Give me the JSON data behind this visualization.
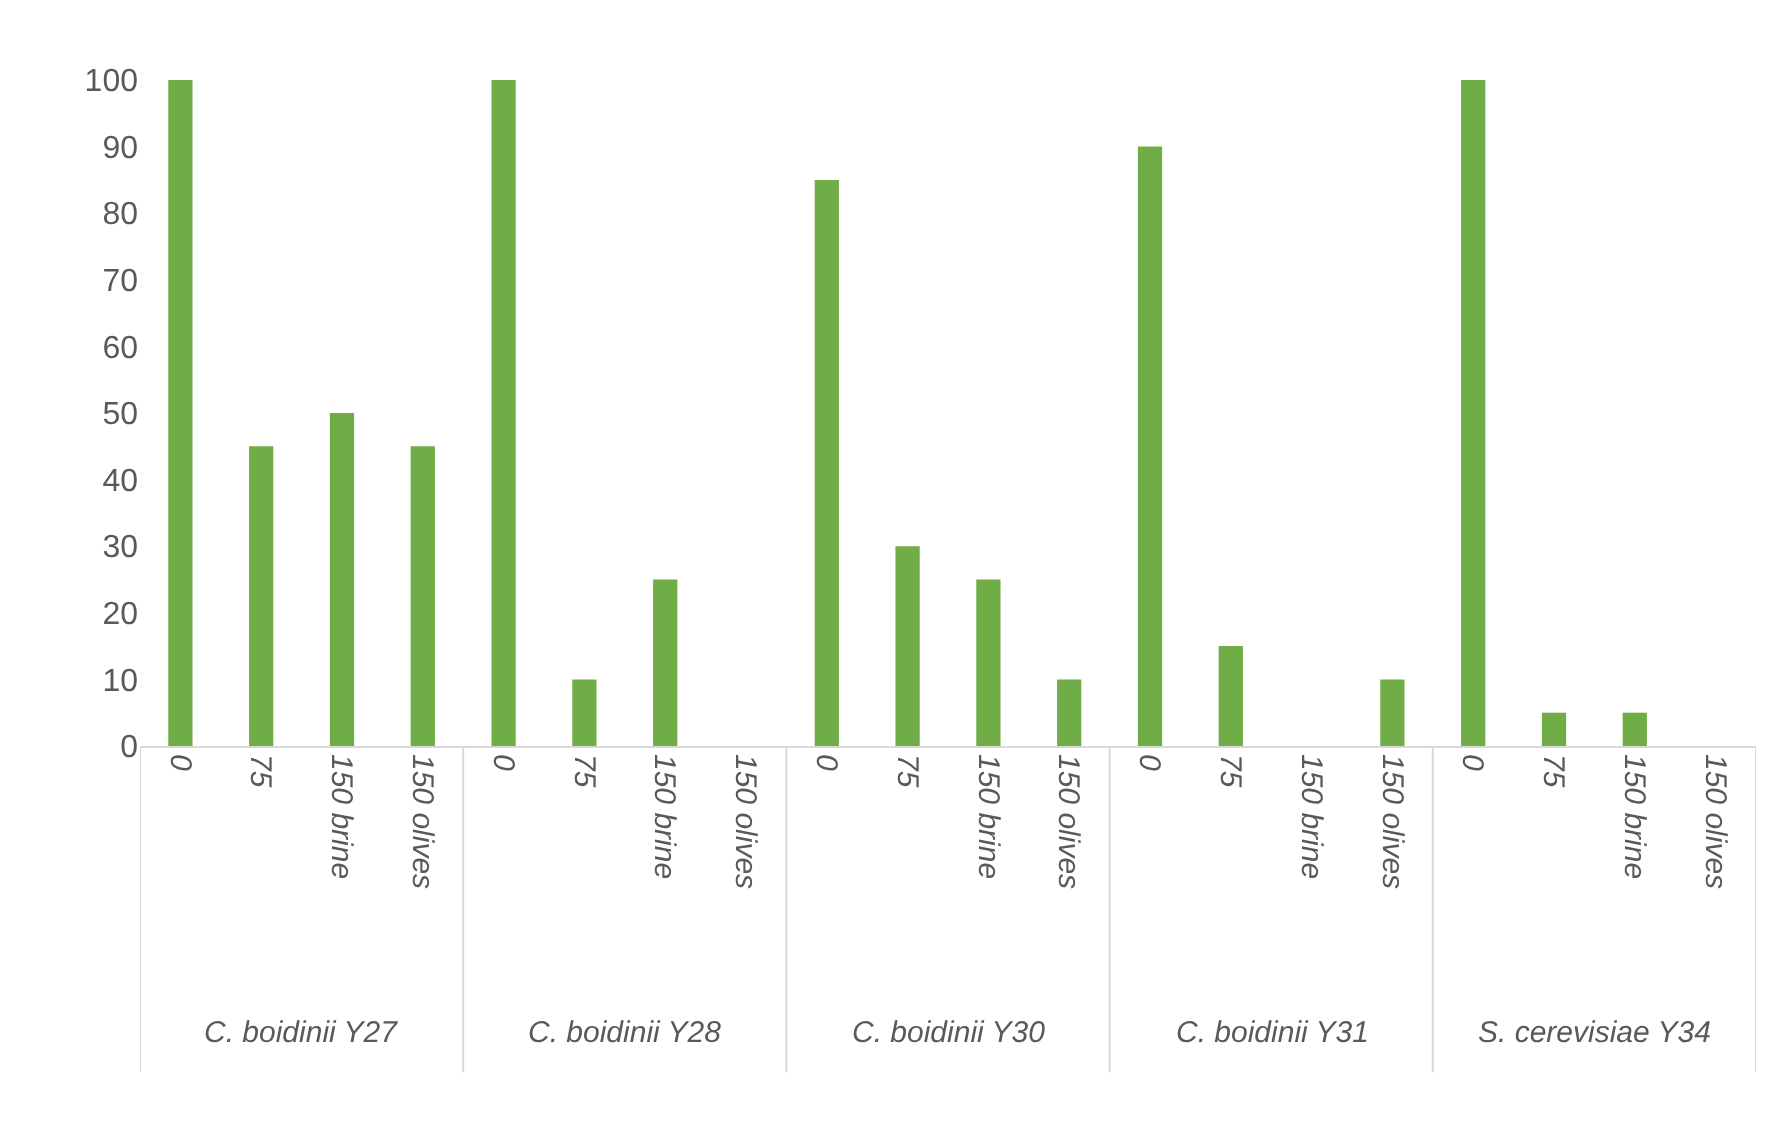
{
  "chart_data": {
    "type": "bar",
    "categories": [
      "0",
      "75",
      "150 brine",
      "150 olives",
      "0",
      "75",
      "150 brine",
      "150 olives",
      "0",
      "75",
      "150 brine",
      "150 olives",
      "0",
      "75",
      "150 brine",
      "150 olives",
      "0",
      "75",
      "150 brine",
      "150 olives"
    ],
    "values": [
      100,
      45,
      50,
      45,
      100,
      10,
      25,
      0,
      85,
      30,
      25,
      10,
      90,
      15,
      0,
      10,
      100,
      5,
      5,
      0
    ],
    "color": "#70ad47",
    "ylim": [
      0,
      100
    ],
    "yticks": [
      0,
      10,
      20,
      30,
      40,
      50,
      60,
      70,
      80,
      90,
      100
    ],
    "grid": false,
    "legend": false,
    "annotations": [
      "C. boidinii Y27",
      "C. boidinii Y28",
      "C. boidinii Y30",
      "C. boidinii Y31",
      "S. cerevisiae Y34"
    ]
  }
}
